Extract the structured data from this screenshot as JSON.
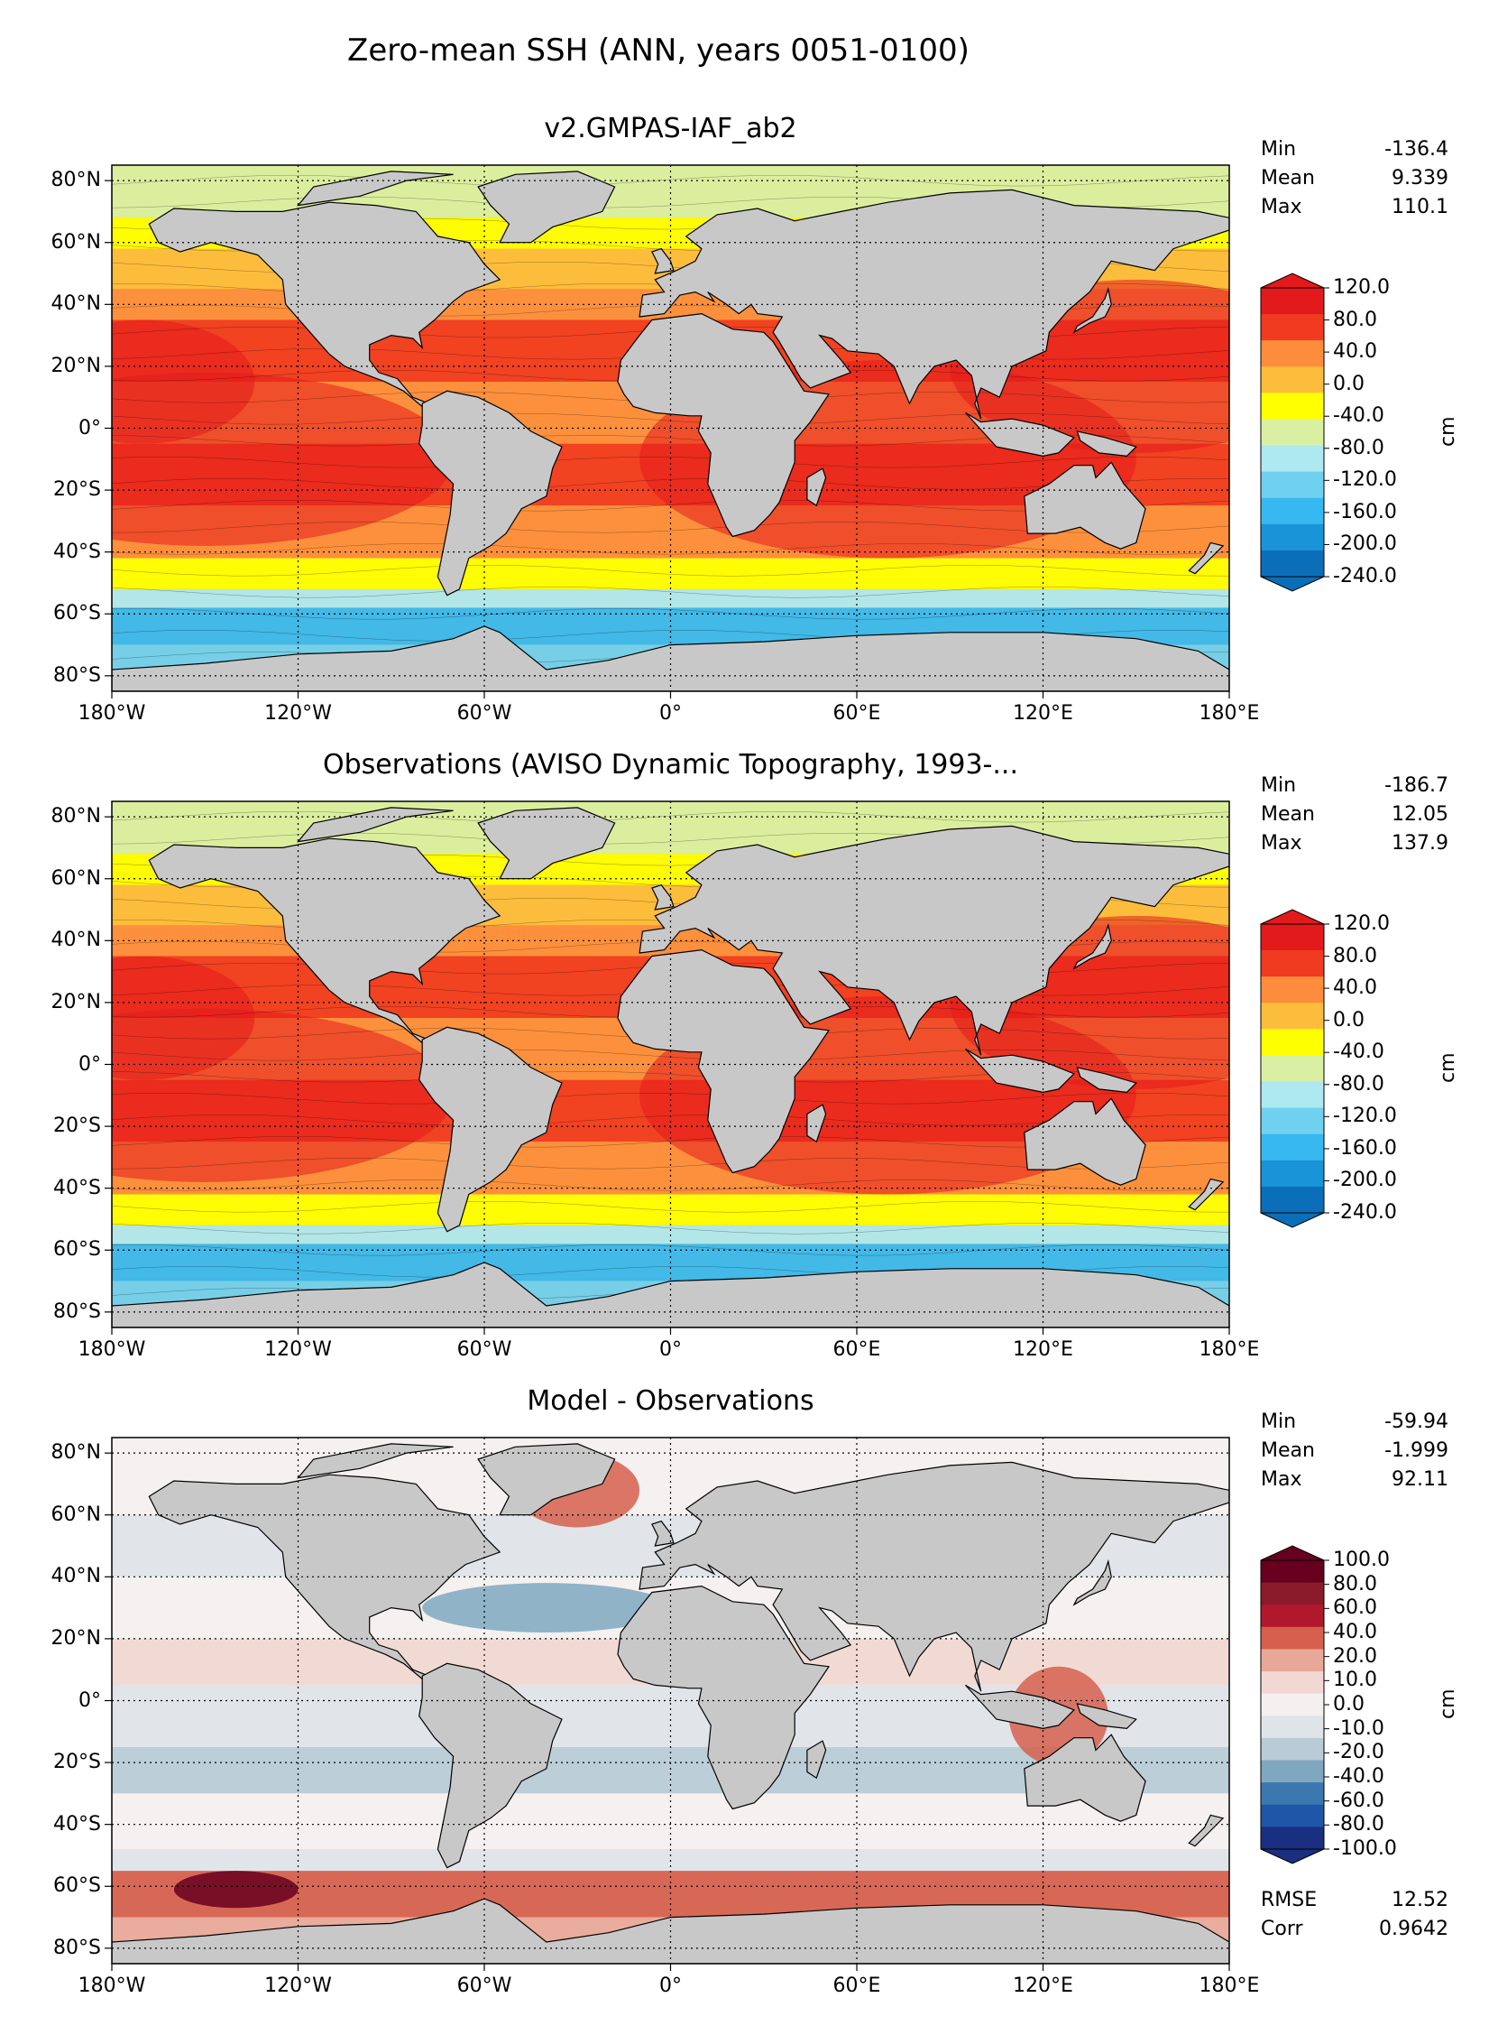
{
  "figure_title": "Zero-mean SSH (ANN, years 0051-0100)",
  "panels": [
    {
      "title": "v2.GMPAS-IAF_ab2",
      "stats": [
        {
          "label": "Min",
          "value": "-136.4"
        },
        {
          "label": "Mean",
          "value": "9.339"
        },
        {
          "label": "Max",
          "value": "110.1"
        }
      ],
      "colorbar": {
        "unit": "cm",
        "ticks": [
          "120.0",
          "80.0",
          "40.0",
          "0.0",
          "-40.0",
          "-80.0",
          "-120.0",
          "-160.0",
          "-200.0",
          "-240.0"
        ],
        "palette": [
          "#e31a1c",
          "#f03b20",
          "#fd8d3c",
          "#fdbd3c",
          "#ffff00",
          "#d9f0a3",
          "#aee8f0",
          "#6fd0f0",
          "#38b8f0",
          "#1a94d8",
          "#0a6fb8"
        ]
      }
    },
    {
      "title": "Observations (AVISO Dynamic Topography, 1993-...",
      "stats": [
        {
          "label": "Min",
          "value": "-186.7"
        },
        {
          "label": "Mean",
          "value": "12.05"
        },
        {
          "label": "Max",
          "value": "137.9"
        }
      ],
      "colorbar": {
        "unit": "cm",
        "ticks": [
          "120.0",
          "80.0",
          "40.0",
          "0.0",
          "-40.0",
          "-80.0",
          "-120.0",
          "-160.0",
          "-200.0",
          "-240.0"
        ],
        "palette": [
          "#e31a1c",
          "#f03b20",
          "#fd8d3c",
          "#fdbd3c",
          "#ffff00",
          "#d9f0a3",
          "#aee8f0",
          "#6fd0f0",
          "#38b8f0",
          "#1a94d8",
          "#0a6fb8"
        ]
      }
    },
    {
      "title": "Model - Observations",
      "stats": [
        {
          "label": "Min",
          "value": "-59.94"
        },
        {
          "label": "Mean",
          "value": "-1.999"
        },
        {
          "label": "Max",
          "value": "92.11"
        }
      ],
      "extra_stats": [
        {
          "label": "RMSE",
          "value": "12.52"
        },
        {
          "label": "Corr",
          "value": "0.9642"
        }
      ],
      "colorbar": {
        "unit": "cm",
        "ticks": [
          "100.0",
          "80.0",
          "60.0",
          "40.0",
          "20.0",
          "10.0",
          "0.0",
          "-10.0",
          "-20.0",
          "-40.0",
          "-60.0",
          "-80.0",
          "-100.0"
        ],
        "palette": [
          "#67001f",
          "#8b1a2b",
          "#b2182b",
          "#d6604d",
          "#e8a898",
          "#f1d8d2",
          "#f4f0ef",
          "#dfe4e8",
          "#b8cbd6",
          "#7fa8c0",
          "#3b78b0",
          "#1f56a8",
          "#1a2f80"
        ]
      }
    }
  ],
  "map": {
    "lat_ticks": [
      "80°N",
      "60°N",
      "40°N",
      "20°N",
      "0°",
      "20°S",
      "40°S",
      "60°S",
      "80°S"
    ],
    "lon_ticks": [
      "180°W",
      "120°W",
      "60°W",
      "0°",
      "60°E",
      "120°E",
      "180°E"
    ],
    "land_color": "#c8c8c8"
  }
}
